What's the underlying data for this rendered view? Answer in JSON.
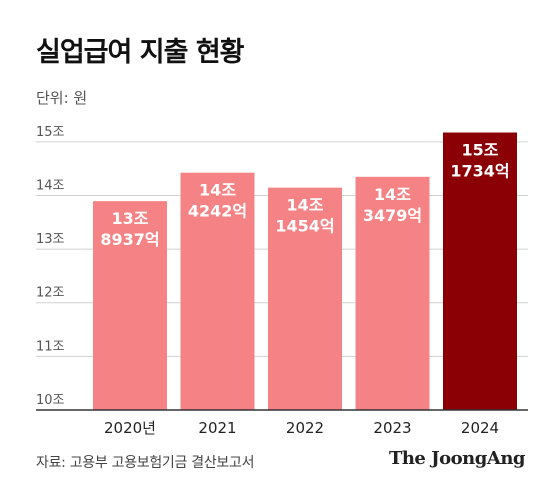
{
  "title": "실업급여 지출 현황",
  "unit_label": "단위: 원",
  "source": "자료: 고용부 고용보험기금 결산보고서",
  "logo": "The JoongAng",
  "colors": {
    "bar": "#f58385",
    "highlight": "#8b0005",
    "grid": "#d0d0d0",
    "axis": "#333333",
    "label_text": "#ffffff"
  },
  "chart_data": {
    "type": "bar",
    "title": "실업급여 지출 현황",
    "unit": "원",
    "categories": [
      "2020년",
      "2021",
      "2022",
      "2023",
      "2024"
    ],
    "values": [
      13.8937,
      14.4242,
      14.1454,
      14.3479,
      15.1734
    ],
    "data_labels": [
      [
        "13조",
        "8937억"
      ],
      [
        "14조",
        "4242억"
      ],
      [
        "14조",
        "1454억"
      ],
      [
        "14조",
        "3479억"
      ],
      [
        "15조",
        "1734억"
      ]
    ],
    "y_ticks": [
      10,
      11,
      12,
      13,
      14,
      15
    ],
    "y_tick_labels": [
      "10조",
      "11조",
      "12조",
      "13조",
      "14조",
      "15조"
    ],
    "ylim": [
      10,
      15.5
    ],
    "highlight_index": 4,
    "grid": true,
    "legend": "none"
  }
}
